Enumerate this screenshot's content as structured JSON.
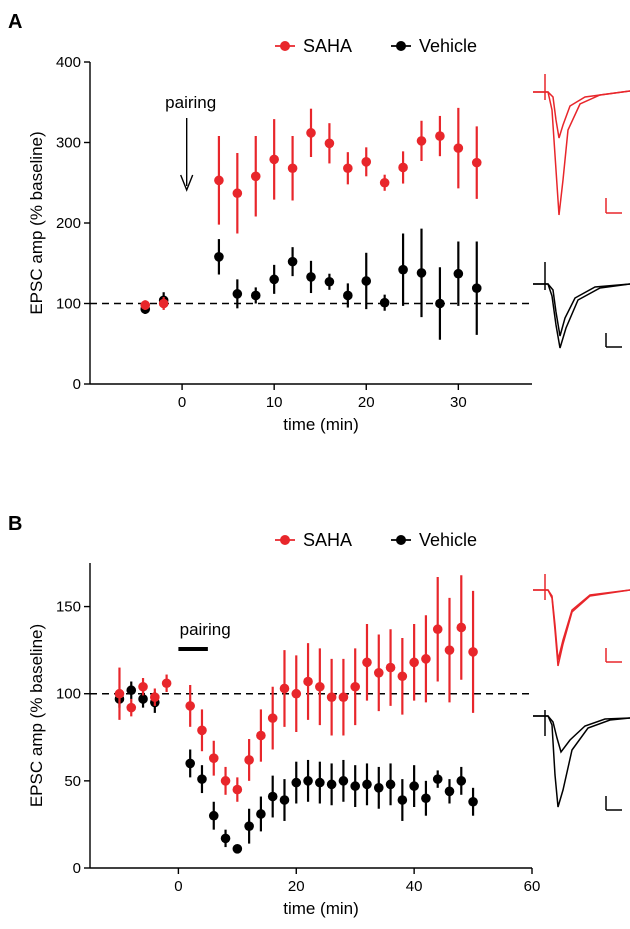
{
  "chart_data": [
    {
      "panel": "A",
      "type": "scatter",
      "xlabel": "time (min)",
      "ylabel": "EPSC amp (% baseline)",
      "xlim": [
        -10,
        38
      ],
      "ylim": [
        0,
        400
      ],
      "xticks": [
        0,
        10,
        20,
        30
      ],
      "yticks": [
        0,
        100,
        200,
        300,
        400
      ],
      "baseline": 100,
      "legend_position": "top",
      "annotation": {
        "text": "pairing",
        "x": 0.5
      },
      "series": [
        {
          "name": "SAHA",
          "color": "#e8262b",
          "points": [
            {
              "x": -4,
              "y": 98,
              "err": 6
            },
            {
              "x": -2,
              "y": 100,
              "err": 8
            },
            {
              "x": 4,
              "y": 253,
              "err": 55
            },
            {
              "x": 6,
              "y": 237,
              "err": 50
            },
            {
              "x": 8,
              "y": 258,
              "err": 50
            },
            {
              "x": 10,
              "y": 279,
              "err": 50
            },
            {
              "x": 12,
              "y": 268,
              "err": 40
            },
            {
              "x": 14,
              "y": 312,
              "err": 30
            },
            {
              "x": 16,
              "y": 299,
              "err": 25
            },
            {
              "x": 18,
              "y": 268,
              "err": 20
            },
            {
              "x": 20,
              "y": 276,
              "err": 18
            },
            {
              "x": 22,
              "y": 250,
              "err": 10
            },
            {
              "x": 24,
              "y": 269,
              "err": 20
            },
            {
              "x": 26,
              "y": 302,
              "err": 25
            },
            {
              "x": 28,
              "y": 308,
              "err": 25
            },
            {
              "x": 30,
              "y": 293,
              "err": 50
            },
            {
              "x": 32,
              "y": 275,
              "err": 45
            }
          ]
        },
        {
          "name": "Vehicle",
          "color": "#000000",
          "points": [
            {
              "x": -4,
              "y": 93,
              "err": 6
            },
            {
              "x": -2,
              "y": 104,
              "err": 10
            },
            {
              "x": 4,
              "y": 158,
              "err": 22
            },
            {
              "x": 6,
              "y": 112,
              "err": 18
            },
            {
              "x": 8,
              "y": 110,
              "err": 10
            },
            {
              "x": 10,
              "y": 130,
              "err": 18
            },
            {
              "x": 12,
              "y": 152,
              "err": 18
            },
            {
              "x": 14,
              "y": 133,
              "err": 20
            },
            {
              "x": 16,
              "y": 127,
              "err": 10
            },
            {
              "x": 18,
              "y": 110,
              "err": 15
            },
            {
              "x": 20,
              "y": 128,
              "err": 35
            },
            {
              "x": 22,
              "y": 101,
              "err": 10
            },
            {
              "x": 24,
              "y": 142,
              "err": 45
            },
            {
              "x": 26,
              "y": 138,
              "err": 55
            },
            {
              "x": 28,
              "y": 100,
              "err": 45
            },
            {
              "x": 30,
              "y": 137,
              "err": 40
            },
            {
              "x": 32,
              "y": 119,
              "err": 58
            }
          ]
        }
      ]
    },
    {
      "panel": "B",
      "type": "scatter",
      "xlabel": "time (min)",
      "ylabel": "EPSC amp (% baseline)",
      "xlim": [
        -15,
        60
      ],
      "ylim": [
        0,
        175
      ],
      "xticks": [
        0,
        20,
        40,
        60
      ],
      "yticks": [
        0,
        50,
        100,
        150
      ],
      "baseline": 100,
      "legend_position": "top",
      "annotation": {
        "text": "pairing",
        "x_start": 0,
        "x_end": 5
      },
      "series": [
        {
          "name": "SAHA",
          "color": "#e8262b",
          "points": [
            {
              "x": -10,
              "y": 100,
              "err": 15
            },
            {
              "x": -8,
              "y": 92,
              "err": 5
            },
            {
              "x": -6,
              "y": 104,
              "err": 5
            },
            {
              "x": -4,
              "y": 98,
              "err": 5
            },
            {
              "x": -2,
              "y": 106,
              "err": 5
            },
            {
              "x": 2,
              "y": 93,
              "err": 12
            },
            {
              "x": 4,
              "y": 79,
              "err": 12
            },
            {
              "x": 6,
              "y": 63,
              "err": 10
            },
            {
              "x": 8,
              "y": 50,
              "err": 8
            },
            {
              "x": 10,
              "y": 45,
              "err": 7
            },
            {
              "x": 12,
              "y": 62,
              "err": 12
            },
            {
              "x": 14,
              "y": 76,
              "err": 15
            },
            {
              "x": 16,
              "y": 86,
              "err": 18
            },
            {
              "x": 18,
              "y": 103,
              "err": 22
            },
            {
              "x": 20,
              "y": 100,
              "err": 22
            },
            {
              "x": 22,
              "y": 107,
              "err": 22
            },
            {
              "x": 24,
              "y": 104,
              "err": 22
            },
            {
              "x": 26,
              "y": 98,
              "err": 22
            },
            {
              "x": 28,
              "y": 98,
              "err": 22
            },
            {
              "x": 30,
              "y": 104,
              "err": 22
            },
            {
              "x": 32,
              "y": 118,
              "err": 22
            },
            {
              "x": 34,
              "y": 112,
              "err": 22
            },
            {
              "x": 36,
              "y": 115,
              "err": 22
            },
            {
              "x": 38,
              "y": 110,
              "err": 22
            },
            {
              "x": 40,
              "y": 118,
              "err": 22
            },
            {
              "x": 42,
              "y": 120,
              "err": 25
            },
            {
              "x": 44,
              "y": 137,
              "err": 30
            },
            {
              "x": 46,
              "y": 125,
              "err": 30
            },
            {
              "x": 48,
              "y": 138,
              "err": 30
            },
            {
              "x": 50,
              "y": 124,
              "err": 35
            }
          ]
        },
        {
          "name": "Vehicle",
          "color": "#000000",
          "points": [
            {
              "x": -10,
              "y": 97,
              "err": 5
            },
            {
              "x": -8,
              "y": 102,
              "err": 5
            },
            {
              "x": -6,
              "y": 97,
              "err": 5
            },
            {
              "x": -4,
              "y": 95,
              "err": 6
            },
            {
              "x": 2,
              "y": 60,
              "err": 8
            },
            {
              "x": 4,
              "y": 51,
              "err": 8
            },
            {
              "x": 6,
              "y": 30,
              "err": 8
            },
            {
              "x": 8,
              "y": 17,
              "err": 5
            },
            {
              "x": 10,
              "y": 11,
              "err": 2
            },
            {
              "x": 12,
              "y": 24,
              "err": 10
            },
            {
              "x": 14,
              "y": 31,
              "err": 10
            },
            {
              "x": 16,
              "y": 41,
              "err": 12
            },
            {
              "x": 18,
              "y": 39,
              "err": 12
            },
            {
              "x": 20,
              "y": 49,
              "err": 12
            },
            {
              "x": 22,
              "y": 50,
              "err": 12
            },
            {
              "x": 24,
              "y": 49,
              "err": 12
            },
            {
              "x": 26,
              "y": 48,
              "err": 12
            },
            {
              "x": 28,
              "y": 50,
              "err": 12
            },
            {
              "x": 30,
              "y": 47,
              "err": 12
            },
            {
              "x": 32,
              "y": 48,
              "err": 12
            },
            {
              "x": 34,
              "y": 46,
              "err": 12
            },
            {
              "x": 36,
              "y": 48,
              "err": 12
            },
            {
              "x": 38,
              "y": 39,
              "err": 12
            },
            {
              "x": 40,
              "y": 47,
              "err": 12
            },
            {
              "x": 42,
              "y": 40,
              "err": 10
            },
            {
              "x": 44,
              "y": 51,
              "err": 5
            },
            {
              "x": 46,
              "y": 44,
              "err": 7
            },
            {
              "x": 48,
              "y": 50,
              "err": 8
            },
            {
              "x": 50,
              "y": 38,
              "err": 8
            }
          ]
        }
      ]
    }
  ]
}
